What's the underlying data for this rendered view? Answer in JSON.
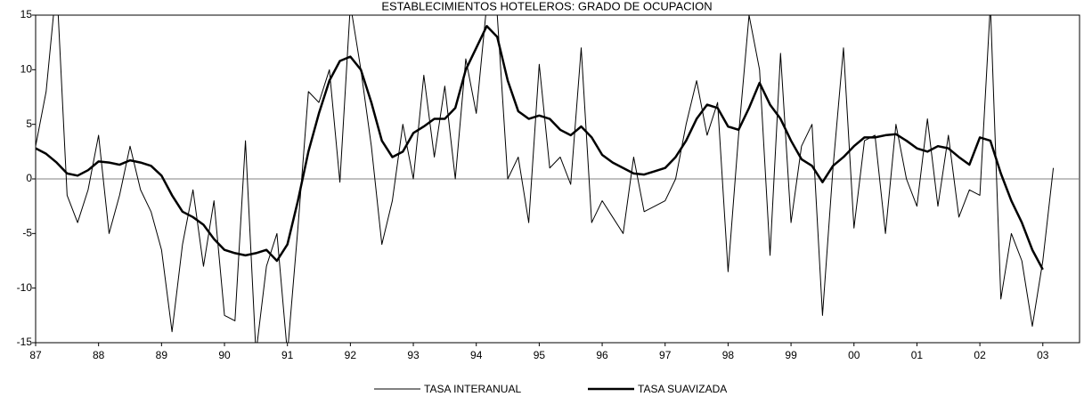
{
  "chart_data": {
    "type": "line",
    "title": "ESTABLECIMIENTOS HOTELEROS: GRADO DE OCUPACION",
    "x": [
      0,
      2,
      4,
      6,
      8,
      10,
      12,
      14,
      16,
      18,
      20,
      22,
      24,
      26,
      28,
      30,
      32,
      34,
      36,
      38,
      40,
      42,
      44,
      46,
      48,
      50,
      52,
      54,
      56,
      58,
      60,
      62,
      64,
      66,
      68,
      70,
      72,
      74,
      76,
      78,
      80,
      82,
      84,
      86,
      88,
      90,
      92,
      94,
      96,
      98,
      100,
      102,
      104,
      106,
      108,
      110,
      112,
      114,
      116,
      118,
      120,
      122,
      124,
      126,
      128,
      130,
      132,
      134,
      136,
      138,
      140,
      142,
      144,
      146,
      148,
      150,
      152,
      154,
      156,
      158,
      160,
      162,
      164,
      166,
      168,
      170,
      172,
      174,
      176,
      178,
      180,
      182,
      184,
      186,
      188,
      190,
      192,
      194
    ],
    "series": [
      {
        "name": "TASA INTERANUAL",
        "color": "#000000",
        "width": 1,
        "values": [
          3,
          8,
          18,
          -1.5,
          -4,
          -1,
          4,
          -5,
          -1.5,
          3,
          -1,
          -3,
          -6.5,
          -14,
          -6,
          -1,
          -8,
          -2,
          -12.5,
          -13,
          3.5,
          -16,
          -8,
          -5,
          -16,
          -4.5,
          8,
          7,
          10,
          -0.3,
          16,
          10,
          3,
          -6,
          -2,
          5,
          0,
          9.5,
          2,
          8.5,
          0,
          11,
          6,
          16,
          15,
          0,
          2,
          -4,
          10.5,
          1,
          2,
          -0.5,
          12,
          -4,
          -2,
          -3.5,
          -5,
          2,
          -3,
          -2.5,
          -2,
          0,
          5,
          9,
          4,
          7,
          -8.5,
          4,
          15,
          10,
          -7,
          11.5,
          -4,
          3,
          5,
          -12.5,
          1,
          12,
          -4.5,
          3.5,
          4,
          -5,
          5,
          0,
          -2.5,
          5.5,
          -2.5,
          4,
          -3.5,
          -1,
          -1.5,
          16,
          -11,
          -5,
          -7.5,
          -13.5,
          -7.5,
          1
        ]
      },
      {
        "name": "TASA SUAVIZADA",
        "color": "#000000",
        "width": 2.5,
        "values": [
          2.8,
          2.3,
          1.5,
          0.5,
          0.3,
          0.8,
          1.6,
          1.5,
          1.3,
          1.7,
          1.5,
          1.2,
          0.3,
          -1.5,
          -3,
          -3.5,
          -4.2,
          -5.5,
          -6.5,
          -6.8,
          -7,
          -6.8,
          -6.5,
          -7.5,
          -6,
          -2,
          2.5,
          6,
          9,
          10.8,
          11.2,
          10,
          7,
          3.5,
          2,
          2.5,
          4.2,
          4.8,
          5.5,
          5.5,
          6.5,
          10,
          12,
          14,
          13,
          9,
          6.2,
          5.5,
          5.8,
          5.5,
          4.5,
          4,
          4.8,
          3.8,
          2.2,
          1.5,
          1,
          0.5,
          0.4,
          0.7,
          1,
          2,
          3.5,
          5.5,
          6.8,
          6.5,
          4.8,
          4.5,
          6.5,
          8.8,
          6.8,
          5.5,
          3.5,
          1.8,
          1.2,
          -0.3,
          1.2,
          2,
          3,
          3.8,
          3.8,
          4,
          4.1,
          3.5,
          2.8,
          2.5,
          3,
          2.8,
          2,
          1.3,
          3.8,
          3.5,
          0.5,
          -2,
          -4,
          -6.5,
          -8.3,
          null
        ]
      }
    ],
    "xlim": [
      0,
      199
    ],
    "xticks": [
      {
        "value": 0,
        "label": "87"
      },
      {
        "value": 12,
        "label": "88"
      },
      {
        "value": 24,
        "label": "89"
      },
      {
        "value": 36,
        "label": "90"
      },
      {
        "value": 48,
        "label": "91"
      },
      {
        "value": 60,
        "label": "92"
      },
      {
        "value": 72,
        "label": "93"
      },
      {
        "value": 84,
        "label": "94"
      },
      {
        "value": 96,
        "label": "95"
      },
      {
        "value": 108,
        "label": "96"
      },
      {
        "value": 120,
        "label": "97"
      },
      {
        "value": 132,
        "label": "98"
      },
      {
        "value": 144,
        "label": "99"
      },
      {
        "value": 156,
        "label": "00"
      },
      {
        "value": 168,
        "label": "01"
      },
      {
        "value": 180,
        "label": "02"
      },
      {
        "value": 192,
        "label": "03"
      }
    ],
    "ylim": [
      -15,
      15
    ],
    "yticks": [
      -15,
      -10,
      -5,
      0,
      5,
      10,
      15
    ],
    "legend": "bottom",
    "grid": false
  }
}
